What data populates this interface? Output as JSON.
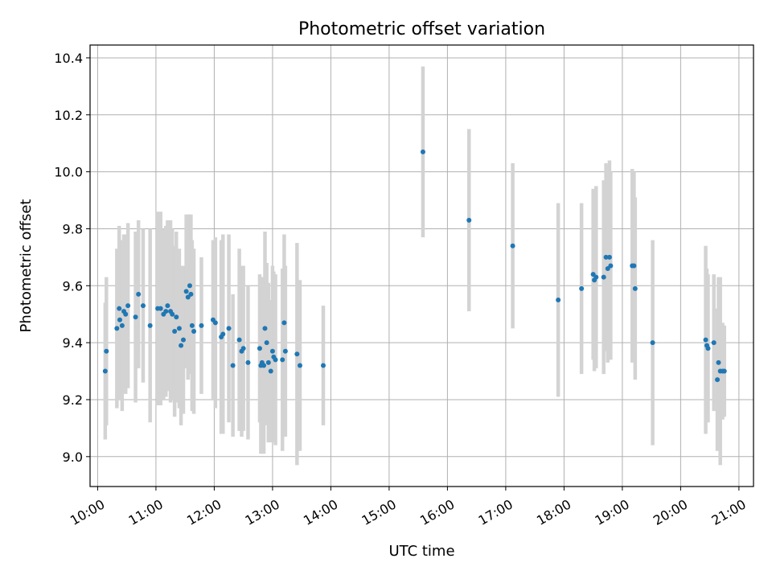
{
  "chart_data": {
    "type": "scatter",
    "title": "Photometric offset variation",
    "xlabel": "UTC time",
    "ylabel": "Photometric offset",
    "x_unit": "hours",
    "xlim": [
      9.87,
      21.25
    ],
    "ylim": [
      8.895,
      10.445
    ],
    "x_ticks": [
      10,
      11,
      12,
      13,
      14,
      15,
      16,
      17,
      18,
      19,
      20,
      21
    ],
    "x_tick_labels": [
      "10:00",
      "11:00",
      "12:00",
      "13:00",
      "14:00",
      "15:00",
      "16:00",
      "17:00",
      "18:00",
      "19:00",
      "20:00",
      "21:00"
    ],
    "y_ticks": [
      9.0,
      9.2,
      9.4,
      9.6,
      9.8,
      10.0,
      10.2,
      10.4
    ],
    "y_tick_labels": [
      "9.0",
      "9.2",
      "9.4",
      "9.6",
      "9.8",
      "10.0",
      "10.2",
      "10.4"
    ],
    "grid": true,
    "series": [
      {
        "marker_color": "#1f77b4",
        "errorbar_color": "#d3d3d3",
        "points": [
          [
            10.13,
            9.3,
            0.24
          ],
          [
            10.15,
            9.37,
            0.26
          ],
          [
            10.33,
            9.45,
            0.28
          ],
          [
            10.37,
            9.52,
            0.29
          ],
          [
            10.38,
            9.48,
            0.28
          ],
          [
            10.42,
            9.46,
            0.3
          ],
          [
            10.45,
            9.51,
            0.27
          ],
          [
            10.48,
            9.5,
            0.28
          ],
          [
            10.52,
            9.53,
            0.29
          ],
          [
            10.65,
            9.49,
            0.3
          ],
          [
            10.7,
            9.57,
            0.26
          ],
          [
            10.78,
            9.53,
            0.27
          ],
          [
            10.9,
            9.46,
            0.34
          ],
          [
            11.03,
            9.52,
            0.34
          ],
          [
            11.08,
            9.52,
            0.34
          ],
          [
            11.13,
            9.5,
            0.3
          ],
          [
            11.17,
            9.51,
            0.3
          ],
          [
            11.2,
            9.53,
            0.3
          ],
          [
            11.25,
            9.51,
            0.32
          ],
          [
            11.28,
            9.5,
            0.3
          ],
          [
            11.32,
            9.44,
            0.3
          ],
          [
            11.35,
            9.49,
            0.3
          ],
          [
            11.4,
            9.45,
            0.28
          ],
          [
            11.43,
            9.39,
            0.28
          ],
          [
            11.47,
            9.41,
            0.26
          ],
          [
            11.52,
            9.58,
            0.27
          ],
          [
            11.55,
            9.56,
            0.29
          ],
          [
            11.58,
            9.6,
            0.25
          ],
          [
            11.6,
            9.57,
            0.28
          ],
          [
            11.62,
            9.46,
            0.3
          ],
          [
            11.65,
            9.44,
            0.29
          ],
          [
            11.78,
            9.46,
            0.24
          ],
          [
            11.98,
            9.48,
            0.28
          ],
          [
            12.02,
            9.47,
            0.3
          ],
          [
            12.12,
            9.42,
            0.34
          ],
          [
            12.15,
            9.43,
            0.35
          ],
          [
            12.25,
            9.45,
            0.33
          ],
          [
            12.32,
            9.32,
            0.25
          ],
          [
            12.43,
            9.41,
            0.32
          ],
          [
            12.47,
            9.37,
            0.3
          ],
          [
            12.5,
            9.38,
            0.29
          ],
          [
            12.58,
            9.33,
            0.27
          ],
          [
            12.78,
            9.38,
            0.26
          ],
          [
            12.8,
            9.32,
            0.31
          ],
          [
            12.82,
            9.33,
            0.3
          ],
          [
            12.85,
            9.32,
            0.31
          ],
          [
            12.87,
            9.45,
            0.34
          ],
          [
            12.9,
            9.4,
            0.28
          ],
          [
            12.93,
            9.33,
            0.28
          ],
          [
            12.97,
            9.3,
            0.25
          ],
          [
            13.0,
            9.37,
            0.3
          ],
          [
            13.02,
            9.35,
            0.3
          ],
          [
            13.05,
            9.34,
            0.3
          ],
          [
            13.17,
            9.34,
            0.32
          ],
          [
            13.2,
            9.47,
            0.31
          ],
          [
            13.22,
            9.37,
            0.3
          ],
          [
            13.42,
            9.36,
            0.39
          ],
          [
            13.47,
            9.32,
            0.3
          ],
          [
            13.87,
            9.32,
            0.21
          ],
          [
            15.58,
            10.07,
            0.3
          ],
          [
            16.37,
            9.83,
            0.32
          ],
          [
            17.12,
            9.74,
            0.29
          ],
          [
            17.9,
            9.55,
            0.34
          ],
          [
            18.3,
            9.59,
            0.3
          ],
          [
            18.5,
            9.64,
            0.3
          ],
          [
            18.52,
            9.62,
            0.32
          ],
          [
            18.55,
            9.63,
            0.32
          ],
          [
            18.68,
            9.63,
            0.34
          ],
          [
            18.72,
            9.7,
            0.33
          ],
          [
            18.75,
            9.66,
            0.33
          ],
          [
            18.78,
            9.7,
            0.34
          ],
          [
            18.8,
            9.67,
            0.33
          ],
          [
            19.17,
            9.67,
            0.34
          ],
          [
            19.2,
            9.67,
            0.33
          ],
          [
            19.22,
            9.59,
            0.32
          ],
          [
            19.52,
            9.4,
            0.36
          ],
          [
            20.43,
            9.41,
            0.33
          ],
          [
            20.45,
            9.39,
            0.27
          ],
          [
            20.47,
            9.38,
            0.26
          ],
          [
            20.57,
            9.4,
            0.24
          ],
          [
            20.63,
            9.27,
            0.25
          ],
          [
            20.65,
            9.33,
            0.3
          ],
          [
            20.68,
            9.3,
            0.33
          ],
          [
            20.72,
            9.3,
            0.17
          ],
          [
            20.75,
            9.3,
            0.16
          ]
        ]
      }
    ]
  }
}
